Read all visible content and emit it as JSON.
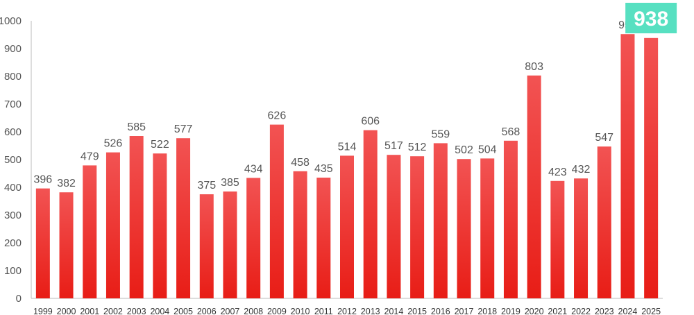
{
  "chart_data": {
    "type": "bar",
    "categories": [
      "1999",
      "2000",
      "2001",
      "2002",
      "2003",
      "2004",
      "2005",
      "2006",
      "2007",
      "2008",
      "2009",
      "2010",
      "2011",
      "2012",
      "2013",
      "2014",
      "2015",
      "2016",
      "2017",
      "2018",
      "2019",
      "2020",
      "2021",
      "2022",
      "2023",
      "2024",
      "2025"
    ],
    "values": [
      396,
      382,
      479,
      526,
      585,
      522,
      577,
      375,
      385,
      434,
      626,
      458,
      435,
      514,
      606,
      517,
      512,
      559,
      502,
      504,
      568,
      803,
      423,
      432,
      547,
      952,
      938
    ],
    "ylim": [
      0,
      1000
    ],
    "yticks": [
      0,
      100,
      200,
      300,
      400,
      500,
      600,
      700,
      800,
      900,
      1000
    ],
    "grid": false,
    "legend": "none",
    "highlight": {
      "category": "2025",
      "label": "938",
      "color": "#57e0c1"
    },
    "colors": {
      "bar_top": "#f25353",
      "bar_bottom": "#e81d16",
      "axis": "#bbbbbb"
    }
  }
}
